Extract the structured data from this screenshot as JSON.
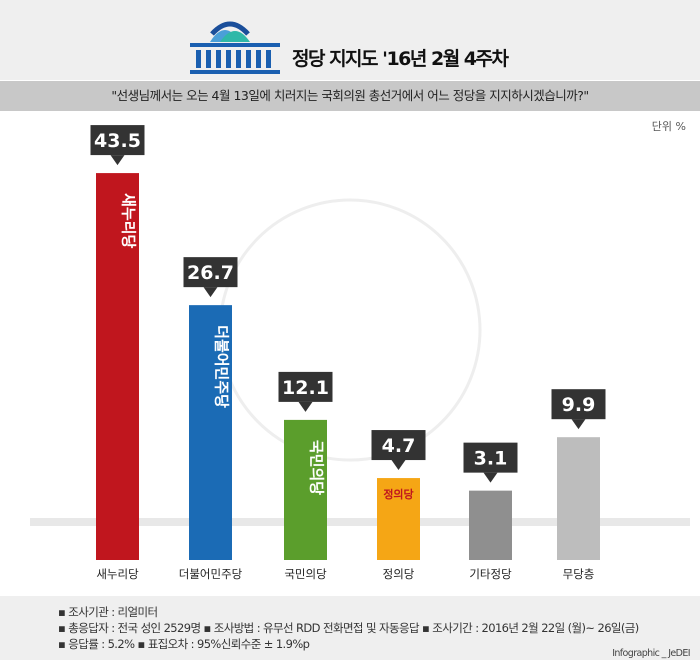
{
  "header": {
    "title": "정당 지지도 '16년 2월 4주차",
    "question": "\"선생님께서는 오는 4월 13일에  치러지는 국회의원 총선거에서 어느 정당을 지지하시겠습니까?\"",
    "unit": "단위 %"
  },
  "chart_data": {
    "type": "bar",
    "categories": [
      "새누리당",
      "더불어민주당",
      "국민의당",
      "정의당",
      "기타정당",
      "무당층"
    ],
    "values": [
      43.5,
      26.7,
      12.1,
      4.7,
      3.1,
      9.9
    ],
    "colors": [
      "#c0161e",
      "#1b6bb5",
      "#5b9e2c",
      "#f5a615",
      "#8f8f8f",
      "#bdbdbd"
    ],
    "ylim": [
      0,
      50
    ],
    "grid": false,
    "bar_logos": [
      "새누리당",
      "더불어민주당",
      "국민의당",
      "정의당",
      "",
      ""
    ]
  },
  "footer": {
    "lines": [
      "▪ 조사기관 : 리얼미터",
      "▪ 총응답자 : 전국 성인 2529명  ▪ 조사방법 : 유무선 RDD 전화면접 및 자동응답  ▪ 조사기간 : 2016년 2월 22일 (월)~ 26일(금)",
      "▪ 응답률 : 5.2%   ▪ 표집오차 : 95%신뢰수준 ± 1.9%p"
    ],
    "credit": "Infographic _ JeDEI"
  }
}
